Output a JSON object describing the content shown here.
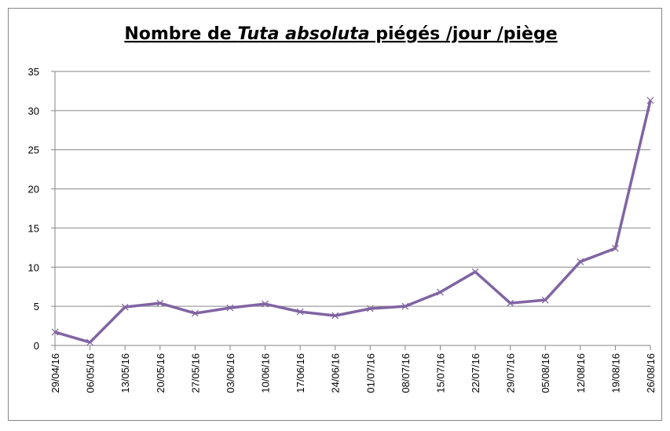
{
  "chart_data": {
    "type": "line",
    "title": [
      "Nombre de ",
      "Tuta absoluta",
      " piégés /jour /piège"
    ],
    "categories": [
      "29/04/16",
      "06/05/16",
      "13/05/16",
      "20/05/16",
      "27/05/16",
      "03/06/16",
      "10/06/16",
      "17/06/16",
      "24/06/16",
      "01/07/16",
      "08/07/16",
      "15/07/16",
      "22/07/16",
      "29/07/16",
      "05/08/16",
      "12/08/16",
      "19/08/16",
      "26/08/16"
    ],
    "series": [
      {
        "color": "#8064a2",
        "values": [
          1.7,
          0.4,
          4.9,
          5.4,
          4.1,
          4.8,
          5.3,
          4.3,
          3.8,
          4.7,
          5.0,
          6.8,
          9.4,
          5.4,
          5.8,
          10.7,
          12.4,
          31.3
        ]
      }
    ],
    "ylim": [
      0,
      35
    ],
    "yticks": [
      0,
      5,
      10,
      15,
      20,
      25,
      30,
      35
    ],
    "grid": true
  }
}
